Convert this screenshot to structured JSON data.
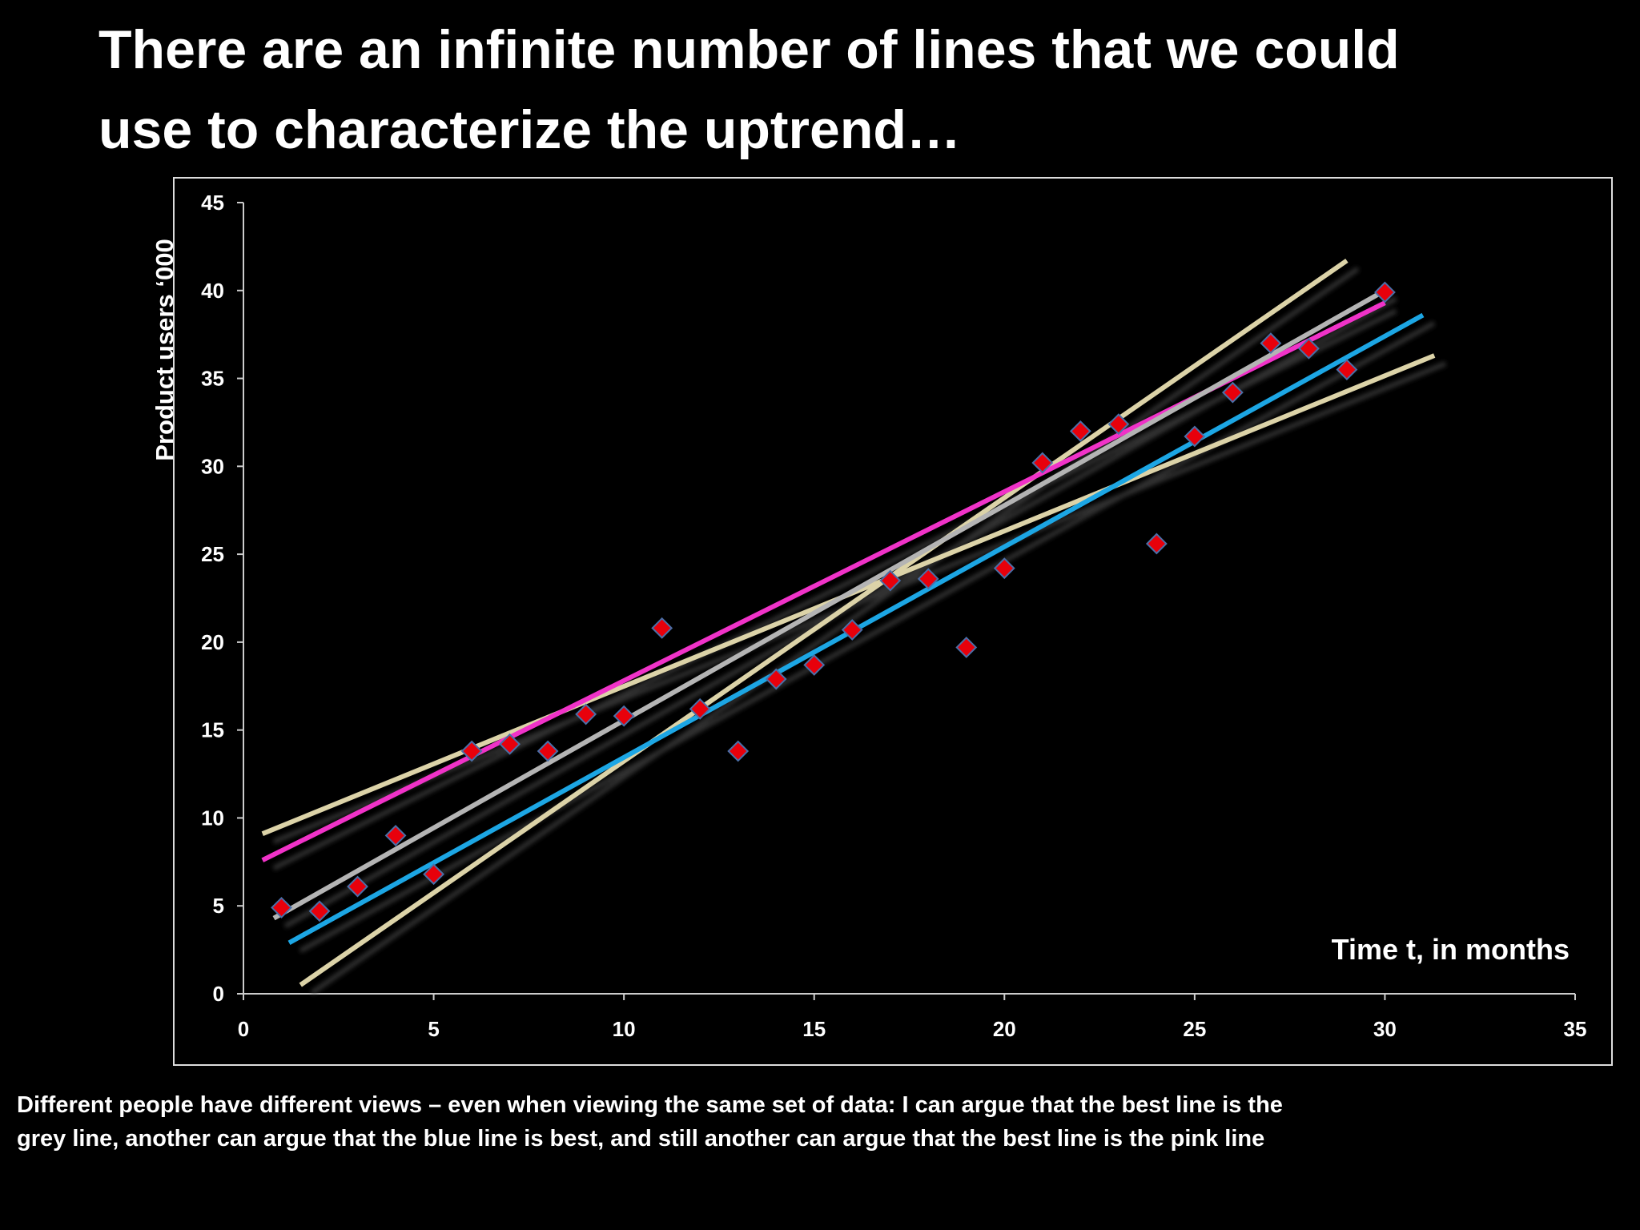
{
  "title": [
    "There are an infinite number of lines that we could",
    "use to characterize the uptrend…"
  ],
  "caption": [
    "Different people have different views – even when viewing the same set of data: I can argue that the best line is the",
    "grey line, another can argue that the blue line is best, and still another can argue that the best line is the pink line"
  ],
  "chart_data": {
    "type": "scatter",
    "ylabel": "Product users ‘000",
    "xlabel": "Time t, in months",
    "xlim": [
      0,
      35
    ],
    "xticks": [
      0,
      5,
      10,
      15,
      20,
      25,
      30,
      35
    ],
    "ylim": [
      0,
      45
    ],
    "yticks": [
      0,
      5,
      10,
      15,
      20,
      25,
      30,
      35,
      40,
      45
    ],
    "lines": [
      {
        "color": "#dcd3a8",
        "x": [
          1.5,
          29
        ],
        "values": [
          0.5,
          41.7
        ]
      },
      {
        "color": "#dcd3a8",
        "x": [
          0.5,
          31.3
        ],
        "values": [
          9.1,
          36.3
        ]
      },
      {
        "color": "#f032c8",
        "x": [
          0.5,
          30
        ],
        "values": [
          7.6,
          39.3
        ]
      },
      {
        "color": "#b4b4b4",
        "x": [
          0.8,
          30
        ],
        "values": [
          4.3,
          40
        ]
      },
      {
        "color": "#1ea6e4",
        "x": [
          1.2,
          31
        ],
        "values": [
          2.9,
          38.6
        ]
      }
    ],
    "series": [
      {
        "color": "#e8000b",
        "x": [
          1,
          2,
          3,
          4,
          5,
          6,
          7,
          8,
          9,
          10,
          11,
          12,
          13,
          14,
          15,
          16,
          17,
          18,
          19,
          20,
          21,
          22,
          23,
          24,
          25,
          26,
          27,
          28,
          29,
          30
        ],
        "values": [
          4.9,
          4.7,
          6.1,
          9.0,
          6.8,
          13.8,
          14.2,
          13.8,
          15.9,
          15.8,
          20.8,
          16.2,
          13.8,
          17.9,
          18.7,
          20.7,
          23.5,
          23.6,
          19.7,
          24.2,
          30.2,
          32.0,
          32.4,
          25.6,
          31.7,
          34.2,
          37.0,
          36.7,
          35.5,
          39.9
        ]
      }
    ]
  }
}
